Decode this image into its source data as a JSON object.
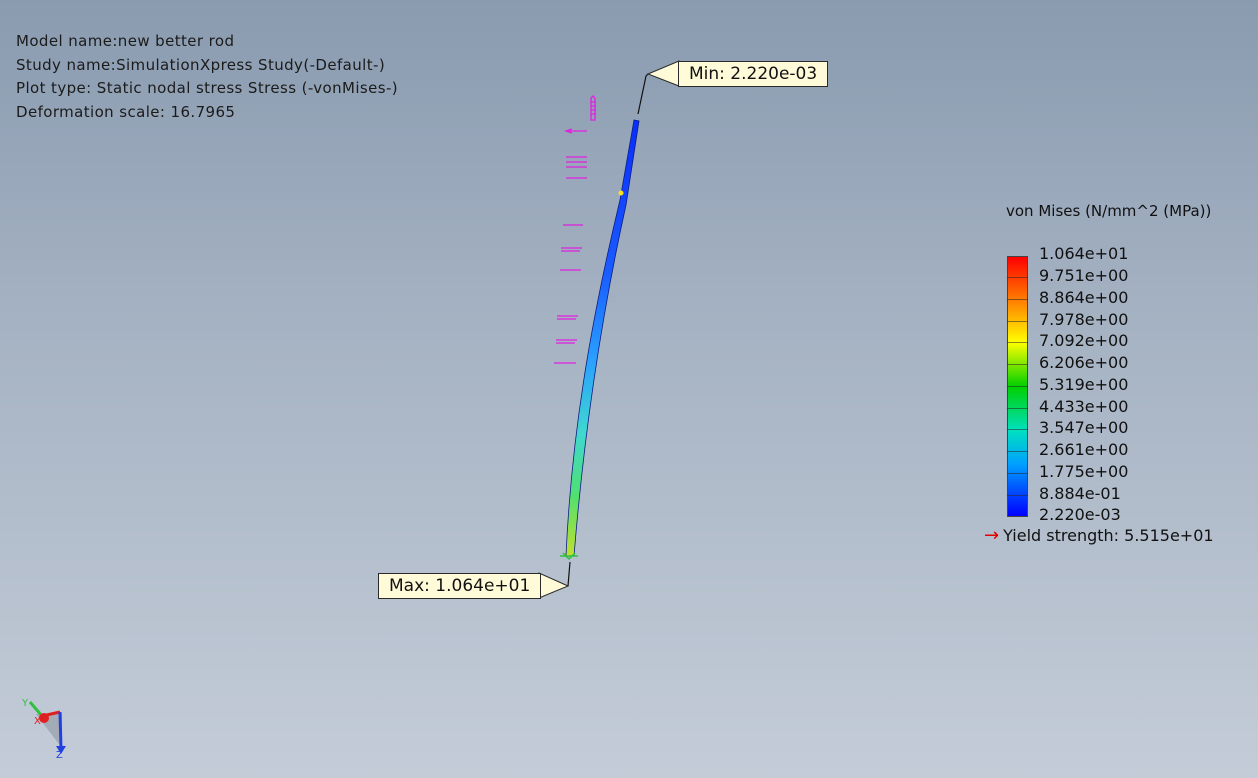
{
  "info": {
    "model_name": "Model name:new better rod",
    "study_name": "Study name:SimulationXpress Study(-Default-)",
    "plot_type": "Plot type: Static nodal stress Stress (-vonMises-)",
    "deformation_scale": "Deformation scale: 16.7965"
  },
  "callouts": {
    "min": "Min: 2.220e-03",
    "max": "Max: 1.064e+01"
  },
  "legend": {
    "title": "von Mises (N/mm^2 (MPa))",
    "labels": [
      "1.064e+01",
      "9.751e+00",
      "8.864e+00",
      "7.978e+00",
      "7.092e+00",
      "6.206e+00",
      "5.319e+00",
      "4.433e+00",
      "3.547e+00",
      "2.661e+00",
      "1.775e+00",
      "8.884e-01",
      "2.220e-03"
    ],
    "yield_strength": "Yield strength: 5.515e+01"
  },
  "triad": {
    "axes": [
      "Y",
      "X",
      "Z"
    ]
  },
  "colors": {
    "background_top": "#8a9bb0",
    "background_bottom": "#c4ccd8",
    "callout_fill": "#fffbd8",
    "fixture_marker": "#e020e0",
    "yield_arrow": "#e00000"
  }
}
